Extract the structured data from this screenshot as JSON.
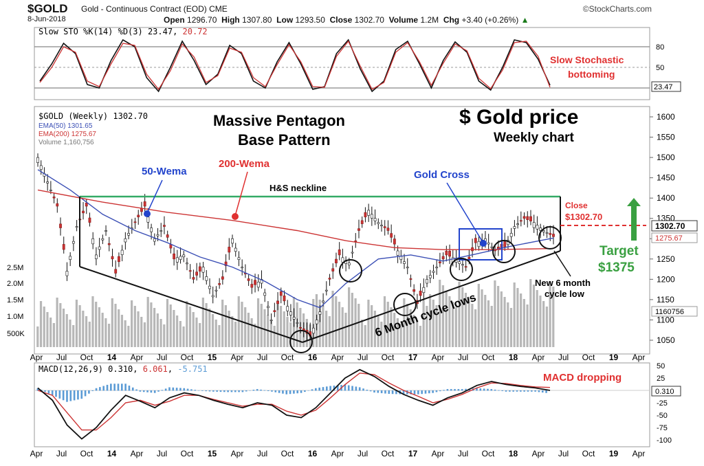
{
  "header": {
    "ticker": "$GOLD",
    "description": "Gold - Continuous Contract (EOD)",
    "exchange": "CME",
    "brand": "©StockCharts.com",
    "date": "8-Jun-2018",
    "open_label": "Open",
    "open": "1296.70",
    "high_label": "High",
    "high": "1307.80",
    "low_label": "Low",
    "low": "1293.50",
    "close_label": "Close",
    "close": "1302.70",
    "volume_label": "Volume",
    "volume": "1.2M",
    "chg_label": "Chg",
    "chg": "+3.40 (+0.26%)"
  },
  "colors": {
    "price": "#111111",
    "ema50": "#3b4fb5",
    "ema200": "#cc3333",
    "neckline": "#33aa66",
    "annotation_red": "#e03030",
    "annotation_blue": "#2244cc",
    "target_green": "#3aa041",
    "volume": "#aaaaaa",
    "macd_hist": "#5b9bd5"
  },
  "chart_data": [
    {
      "type": "line",
      "panel": "stochastic",
      "legend": "Slow STO %K(14) %D(3) 23.47, 20.72",
      "legend_label": "Slow STO %K(14) %D(3) 23.47,",
      "legend_d": "20.72",
      "ylim": [
        0,
        100
      ],
      "ticks": [
        "80",
        "50"
      ],
      "last_value": "23.47",
      "series": [
        {
          "name": "%K",
          "values": [
            30,
            55,
            85,
            70,
            25,
            20,
            60,
            90,
            80,
            35,
            15,
            50,
            88,
            60,
            25,
            40,
            82,
            70,
            30,
            20,
            58,
            86,
            55,
            18,
            22,
            70,
            90,
            48,
            15,
            30,
            76,
            88,
            55,
            20,
            60,
            87,
            72,
            30,
            17,
            50,
            90,
            86,
            62,
            24
          ]
        },
        {
          "name": "%D",
          "values": [
            28,
            50,
            80,
            72,
            30,
            22,
            55,
            85,
            82,
            40,
            18,
            45,
            84,
            65,
            28,
            38,
            78,
            72,
            35,
            22,
            54,
            83,
            58,
            22,
            21,
            66,
            88,
            52,
            18,
            28,
            72,
            86,
            58,
            24,
            56,
            84,
            74,
            34,
            19,
            46,
            86,
            88,
            66,
            21
          ]
        }
      ],
      "annotation": "Slow Stochastic bottoming"
    },
    {
      "type": "line",
      "panel": "price",
      "title": "$ Gold price",
      "subtitle": "Weekly chart",
      "legend": [
        "$GOLD (Weekly) 1302.70",
        "EMA(50) 1301.65",
        "EMA(200) 1275.67",
        "Volume 1,160,756"
      ],
      "ylim": [
        1020,
        1650
      ],
      "y_ticks": [
        1600,
        1550,
        1500,
        1450,
        1400,
        1350,
        1300,
        1250,
        1200,
        1150,
        1100,
        1050
      ],
      "x_ticks": [
        "Apr",
        "Jul",
        "Oct",
        "14",
        "Apr",
        "Jul",
        "Oct",
        "15",
        "Apr",
        "Jul",
        "Oct",
        "16",
        "Apr",
        "Jul",
        "Oct",
        "17",
        "Apr",
        "Jul",
        "Oct",
        "18",
        "Apr",
        "Jul",
        "Oct",
        "19",
        "Apr"
      ],
      "price_labels": [
        "1302.70",
        "1275.67"
      ],
      "volume_ticks": [
        "2.5M",
        "2.0M",
        "1.5M",
        "1.0M",
        "500K"
      ],
      "volume_label": "1160756",
      "series": [
        {
          "name": "$GOLD",
          "points": [
            [
              0,
              1500
            ],
            [
              3,
              1440
            ],
            [
              6,
              1380
            ],
            [
              9,
              1220
            ],
            [
              12,
              1330
            ],
            [
              15,
              1380
            ],
            [
              18,
              1260
            ],
            [
              21,
              1320
            ],
            [
              24,
              1215
            ],
            [
              27,
              1300
            ],
            [
              30,
              1340
            ],
            [
              33,
              1380
            ],
            [
              36,
              1300
            ],
            [
              39,
              1330
            ],
            [
              42,
              1250
            ],
            [
              45,
              1260
            ],
            [
              48,
              1200
            ],
            [
              51,
              1230
            ],
            [
              54,
              1160
            ],
            [
              57,
              1200
            ],
            [
              60,
              1300
            ],
            [
              63,
              1230
            ],
            [
              66,
              1180
            ],
            [
              69,
              1200
            ],
            [
              72,
              1100
            ],
            [
              75,
              1160
            ],
            [
              78,
              1120
            ],
            [
              81,
              1080
            ],
            [
              84,
              1060
            ],
            [
              87,
              1120
            ],
            [
              90,
              1200
            ],
            [
              93,
              1260
            ],
            [
              96,
              1240
            ],
            [
              99,
              1320
            ],
            [
              102,
              1370
            ],
            [
              105,
              1340
            ],
            [
              108,
              1320
            ],
            [
              111,
              1270
            ],
            [
              114,
              1230
            ],
            [
              117,
              1140
            ],
            [
              120,
              1200
            ],
            [
              123,
              1230
            ],
            [
              126,
              1260
            ],
            [
              129,
              1250
            ],
            [
              132,
              1230
            ],
            [
              135,
              1290
            ],
            [
              138,
              1300
            ],
            [
              141,
              1270
            ],
            [
              144,
              1280
            ],
            [
              147,
              1330
            ],
            [
              150,
              1350
            ],
            [
              153,
              1340
            ],
            [
              156,
              1320
            ],
            [
              159,
              1305
            ]
          ]
        },
        {
          "name": "EMA(50)",
          "points": [
            [
              0,
              1470
            ],
            [
              10,
              1420
            ],
            [
              20,
              1360
            ],
            [
              30,
              1320
            ],
            [
              40,
              1290
            ],
            [
              50,
              1255
            ],
            [
              60,
              1230
            ],
            [
              70,
              1195
            ],
            [
              80,
              1150
            ],
            [
              87,
              1130
            ],
            [
              95,
              1190
            ],
            [
              105,
              1250
            ],
            [
              115,
              1260
            ],
            [
              125,
              1245
            ],
            [
              135,
              1262
            ],
            [
              145,
              1280
            ],
            [
              159,
              1301.65
            ]
          ]
        },
        {
          "name": "EMA(200)",
          "points": [
            [
              0,
              1420
            ],
            [
              20,
              1390
            ],
            [
              40,
              1365
            ],
            [
              60,
              1345
            ],
            [
              80,
              1320
            ],
            [
              95,
              1295
            ],
            [
              110,
              1278
            ],
            [
              125,
              1273
            ],
            [
              140,
              1273
            ],
            [
              159,
              1275.67
            ]
          ]
        }
      ],
      "annotations": {
        "title_left": [
          "Massive Pentagon",
          "Base Pattern"
        ],
        "wema50": "50-Wema",
        "wema200": "200-Wema",
        "neckline": "H&S neckline",
        "neckline_value": 1375,
        "gold_cross": "Gold Cross",
        "close_lines": [
          "Close",
          "$1302.70"
        ],
        "target_lines": [
          "Target",
          "$1375"
        ],
        "cycle_lows": "6 Month cycle lows",
        "new_cycle_low": [
          "New 6 month",
          "cycle low"
        ]
      }
    },
    {
      "type": "line",
      "panel": "macd",
      "legend_label": "MACD(12,26,9) 0.310,",
      "legend_signal": "6.061",
      "legend_hist": "-5.751",
      "ylim": [
        -110,
        55
      ],
      "ticks": [
        "50",
        "25",
        "0",
        "-25",
        "-50",
        "-75",
        "-100"
      ],
      "last_value": "0.310",
      "annotation": "MACD dropping",
      "series": [
        {
          "name": "MACD",
          "values": [
            5,
            -20,
            -70,
            -98,
            -75,
            -40,
            -10,
            -22,
            -35,
            -15,
            -5,
            -10,
            -20,
            -28,
            -35,
            -25,
            -30,
            -50,
            -55,
            -35,
            -5,
            25,
            42,
            28,
            8,
            -8,
            -20,
            -30,
            -15,
            -5,
            10,
            18,
            12,
            8,
            5,
            0
          ]
        },
        {
          "name": "Signal",
          "values": [
            0,
            -10,
            -45,
            -80,
            -80,
            -55,
            -25,
            -20,
            -30,
            -22,
            -10,
            -10,
            -18,
            -25,
            -32,
            -28,
            -28,
            -42,
            -50,
            -40,
            -15,
            12,
            35,
            32,
            15,
            0,
            -12,
            -25,
            -18,
            -8,
            5,
            15,
            14,
            10,
            7,
            6
          ]
        }
      ]
    }
  ]
}
